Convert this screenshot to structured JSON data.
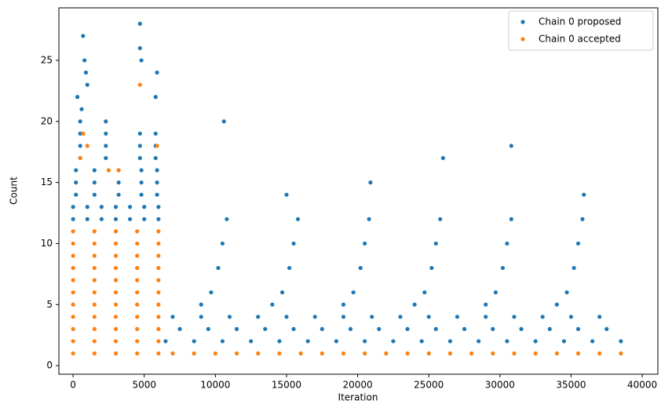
{
  "chart_data": {
    "type": "scatter",
    "xlabel": "Iteration",
    "ylabel": "Count",
    "xlim": [
      -1000,
      41100
    ],
    "ylim": [
      -0.7,
      29.3
    ],
    "xticks": [
      0,
      5000,
      10000,
      15000,
      20000,
      25000,
      30000,
      35000,
      40000
    ],
    "yticks": [
      0,
      5,
      10,
      15,
      20,
      25
    ],
    "legend": "upper right",
    "series": [
      {
        "name": "Chain 0 proposed",
        "color": "#1f77b4",
        "x": [
          0,
          1000,
          2000,
          3000,
          4000,
          5000,
          6000,
          0,
          1000,
          2000,
          3000,
          4000,
          5000,
          6000,
          200,
          1500,
          3200,
          4800,
          5900,
          200,
          1500,
          3200,
          4800,
          5900,
          200,
          1500,
          3200,
          4800,
          5900,
          500,
          2300,
          4700,
          5800,
          500,
          2300,
          4700,
          5800,
          500,
          2300,
          4700,
          5800,
          300,
          500,
          700,
          800,
          900,
          1000,
          2300,
          4700,
          4700,
          4800,
          5900,
          5800,
          600,
          6500,
          8500,
          10500,
          12500,
          14500,
          16500,
          18500,
          20500,
          22500,
          24500,
          26500,
          28500,
          30500,
          32500,
          34500,
          36500,
          38500,
          7500,
          9500,
          11500,
          13500,
          15500,
          17500,
          19500,
          21500,
          23500,
          25500,
          27500,
          29500,
          31500,
          33500,
          35500,
          37500,
          7000,
          9000,
          11000,
          13000,
          15000,
          17000,
          19000,
          21000,
          23000,
          25000,
          27000,
          29000,
          31000,
          33000,
          35000,
          37000,
          9000,
          9700,
          10200,
          10500,
          10800,
          10600,
          14000,
          14700,
          15200,
          15500,
          15800,
          15000,
          19000,
          19700,
          20200,
          20500,
          20800,
          20900,
          24000,
          24700,
          25200,
          25500,
          25800,
          26000,
          29000,
          29700,
          30200,
          30500,
          30800,
          30800,
          34000,
          34700,
          35200,
          35500,
          35800,
          35900
        ],
        "values": [
          12,
          12,
          12,
          12,
          12,
          12,
          12,
          13,
          13,
          13,
          13,
          13,
          13,
          13,
          14,
          14,
          14,
          14,
          14,
          15,
          15,
          15,
          15,
          15,
          16,
          16,
          16,
          16,
          16,
          17,
          17,
          17,
          17,
          18,
          18,
          18,
          18,
          19,
          19,
          19,
          19,
          22,
          20,
          27,
          25,
          24,
          23,
          20,
          28,
          26,
          25,
          24,
          22,
          21,
          2,
          2,
          2,
          2,
          2,
          2,
          2,
          2,
          2,
          2,
          2,
          2,
          2,
          2,
          2,
          2,
          2,
          3,
          3,
          3,
          3,
          3,
          3,
          3,
          3,
          3,
          3,
          3,
          3,
          3,
          3,
          3,
          3,
          4,
          4,
          4,
          4,
          4,
          4,
          4,
          4,
          4,
          4,
          4,
          4,
          4,
          4,
          4,
          4,
          5,
          6,
          8,
          10,
          12,
          20,
          5,
          6,
          8,
          10,
          12,
          14,
          5,
          6,
          8,
          10,
          12,
          15,
          5,
          6,
          8,
          10,
          12,
          17,
          5,
          6,
          8,
          10,
          12,
          18,
          5,
          6,
          8,
          10,
          12,
          14
        ]
      },
      {
        "name": "Chain 0 accepted",
        "color": "#ff7f0e",
        "x": [
          0,
          1500,
          3000,
          4500,
          6000,
          0,
          1500,
          3000,
          4500,
          6000,
          0,
          1500,
          3000,
          4500,
          6000,
          0,
          1500,
          3000,
          4500,
          6000,
          0,
          1500,
          3000,
          4500,
          6000,
          0,
          1500,
          3000,
          4500,
          6000,
          0,
          1500,
          3000,
          4500,
          6000,
          0,
          1500,
          3000,
          4500,
          6000,
          0,
          1500,
          3000,
          4500,
          6000,
          0,
          1500,
          3000,
          4500,
          6000,
          0,
          1500,
          3000,
          4500,
          6000,
          4700,
          700,
          1000,
          3200,
          5900,
          2500,
          500,
          7000,
          8500,
          10000,
          11500,
          13000,
          14500,
          16000,
          17500,
          19000,
          20500,
          22000,
          23500,
          25000,
          26500,
          28000,
          29500,
          31000,
          32500,
          34000,
          35500,
          37000,
          38500
        ],
        "values": [
          1,
          1,
          1,
          1,
          1,
          2,
          2,
          2,
          2,
          2,
          3,
          3,
          3,
          3,
          3,
          4,
          4,
          4,
          4,
          4,
          5,
          5,
          5,
          5,
          5,
          6,
          6,
          6,
          6,
          6,
          7,
          7,
          7,
          7,
          7,
          8,
          8,
          8,
          8,
          8,
          9,
          9,
          9,
          9,
          9,
          10,
          10,
          10,
          10,
          10,
          11,
          11,
          11,
          11,
          11,
          23,
          19,
          18,
          16,
          18,
          16,
          17,
          1,
          1,
          1,
          1,
          1,
          1,
          1,
          1,
          1,
          1,
          1,
          1,
          1,
          1,
          1,
          1,
          1,
          1,
          1,
          1,
          1,
          1
        ]
      }
    ]
  }
}
